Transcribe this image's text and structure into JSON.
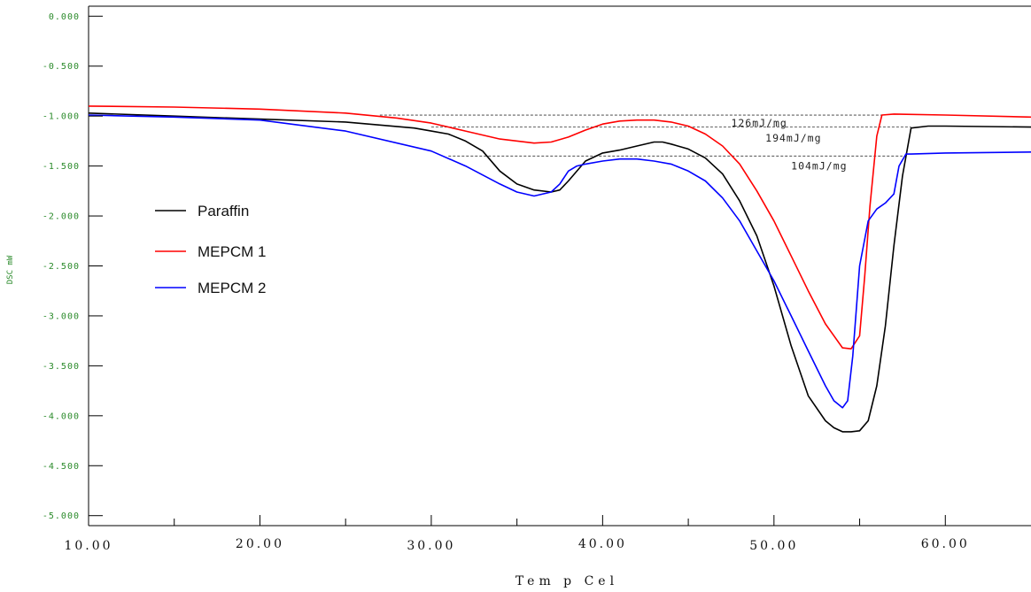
{
  "chart_data": {
    "type": "line",
    "xlabel": "Tem p Cel",
    "ylabel": "DSC mW",
    "xlim": [
      10,
      65
    ],
    "ylim": [
      -5.1,
      0.1
    ],
    "x_ticks": [
      "10.00",
      "20.00",
      "30.00",
      "40.00",
      "50.00",
      "60.00"
    ],
    "y_ticks": [
      "0.000",
      "-0.500",
      "-1.000",
      "-1.500",
      "-2.000",
      "-2.500",
      "-3.000",
      "-3.500",
      "-4.000",
      "-4.500",
      "-5.000"
    ],
    "legend_position": "left-middle",
    "series": [
      {
        "name": "Paraffin",
        "color": "#000000",
        "x": [
          10,
          15,
          20,
          25,
          29,
          30,
          31,
          32,
          33,
          34,
          35,
          36,
          37,
          37.5,
          38,
          39,
          40,
          41,
          42,
          43,
          43.5,
          44,
          45,
          46,
          47,
          48,
          49,
          50,
          51,
          52,
          53,
          53.5,
          54,
          54.5,
          55,
          55.5,
          56,
          56.5,
          57,
          57.5,
          58,
          59,
          60,
          65
        ],
        "y": [
          -0.97,
          -1.0,
          -1.03,
          -1.06,
          -1.12,
          -1.15,
          -1.18,
          -1.25,
          -1.35,
          -1.55,
          -1.68,
          -1.74,
          -1.76,
          -1.74,
          -1.65,
          -1.45,
          -1.37,
          -1.34,
          -1.3,
          -1.26,
          -1.26,
          -1.28,
          -1.33,
          -1.42,
          -1.58,
          -1.85,
          -2.2,
          -2.7,
          -3.3,
          -3.8,
          -4.05,
          -4.12,
          -4.16,
          -4.16,
          -4.15,
          -4.05,
          -3.7,
          -3.1,
          -2.3,
          -1.6,
          -1.12,
          -1.1,
          -1.1,
          -1.11
        ]
      },
      {
        "name": "MEPCM 1",
        "color": "#ff0000",
        "x": [
          10,
          15,
          20,
          25,
          28,
          30,
          32,
          34,
          36,
          37,
          38,
          39,
          40,
          41,
          42,
          43,
          44,
          45,
          46,
          47,
          48,
          49,
          50,
          51,
          52,
          53,
          54,
          54.5,
          55,
          55.3,
          55.6,
          56,
          56.3,
          57,
          60,
          65
        ],
        "y": [
          -0.9,
          -0.91,
          -0.93,
          -0.97,
          -1.02,
          -1.07,
          -1.15,
          -1.23,
          -1.27,
          -1.26,
          -1.21,
          -1.14,
          -1.08,
          -1.05,
          -1.04,
          -1.04,
          -1.06,
          -1.1,
          -1.18,
          -1.3,
          -1.48,
          -1.75,
          -2.05,
          -2.4,
          -2.75,
          -3.08,
          -3.32,
          -3.33,
          -3.2,
          -2.6,
          -1.9,
          -1.2,
          -0.99,
          -0.98,
          -0.99,
          -1.01
        ]
      },
      {
        "name": "MEPCM 2",
        "color": "#0000ff",
        "x": [
          10,
          15,
          20,
          25,
          30,
          32,
          34,
          35,
          36,
          37,
          37.5,
          38,
          38.5,
          39,
          40,
          41,
          42,
          43,
          44,
          45,
          46,
          47,
          48,
          49,
          50,
          51,
          52,
          53,
          53.5,
          54,
          54.3,
          54.6,
          55,
          55.5,
          56,
          56.5,
          57,
          57.3,
          57.7,
          58,
          60,
          65
        ],
        "y": [
          -0.99,
          -1.01,
          -1.04,
          -1.15,
          -1.35,
          -1.5,
          -1.68,
          -1.76,
          -1.8,
          -1.76,
          -1.68,
          -1.55,
          -1.5,
          -1.48,
          -1.45,
          -1.43,
          -1.43,
          -1.45,
          -1.48,
          -1.55,
          -1.65,
          -1.82,
          -2.05,
          -2.35,
          -2.65,
          -3.0,
          -3.35,
          -3.7,
          -3.85,
          -3.92,
          -3.85,
          -3.4,
          -2.5,
          -2.05,
          -1.93,
          -1.87,
          -1.78,
          -1.5,
          -1.38,
          -1.38,
          -1.37,
          -1.36
        ]
      }
    ],
    "annotations": [
      {
        "text": "126mJ/mg",
        "x": 47.5,
        "y": -1.07
      },
      {
        "text": "194mJ/mg",
        "x": 49.5,
        "y": -1.22
      },
      {
        "text": "104mJ/mg",
        "x": 51,
        "y": -1.5
      }
    ],
    "baselines": [
      {
        "x1": 27,
        "x2": 56.5,
        "y": -0.99
      },
      {
        "x1": 30,
        "x2": 58,
        "y": -1.11
      },
      {
        "x1": 31,
        "x2": 57.5,
        "y": -1.4
      }
    ]
  }
}
